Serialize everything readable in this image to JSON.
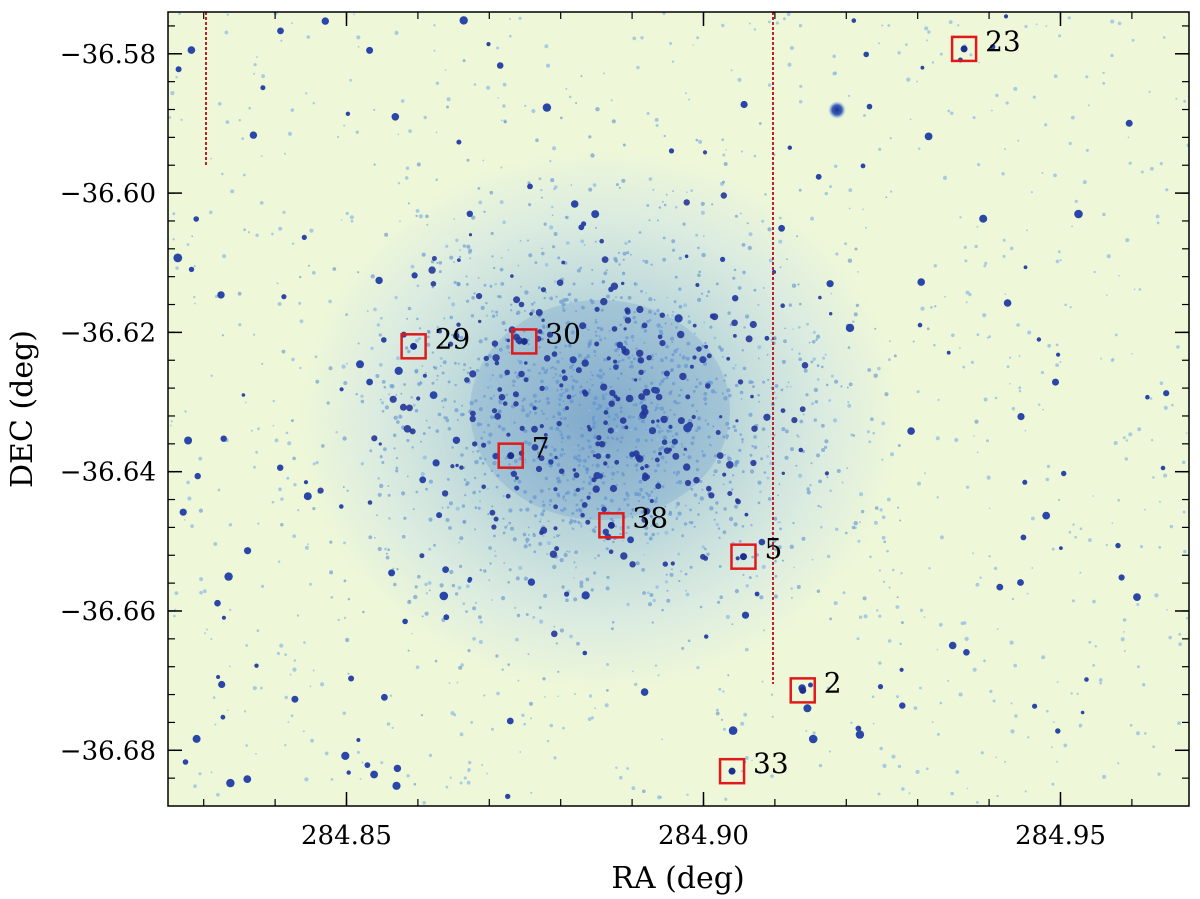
{
  "image": {
    "subject": "star field",
    "colormap": [
      "#eef7d8",
      "#b7d6ee",
      "#3f7bc4",
      "#1d2f8e"
    ],
    "marker_color": "#e01a1a",
    "artifact_color": "#c0202a"
  },
  "axes": {
    "xlabel": "RA (deg)",
    "ylabel": "DEC (deg)",
    "xlim": [
      284.825,
      284.968
    ],
    "ylim": [
      -36.688,
      -36.574
    ],
    "xticks": [
      {
        "value": 284.85,
        "label": "284.85"
      },
      {
        "value": 284.9,
        "label": "284.90"
      },
      {
        "value": 284.95,
        "label": "284.95"
      }
    ],
    "yticks": [
      {
        "value": -36.58,
        "label": "−36.58"
      },
      {
        "value": -36.6,
        "label": "−36.60"
      },
      {
        "value": -36.62,
        "label": "−36.62"
      },
      {
        "value": -36.64,
        "label": "−36.64"
      },
      {
        "value": -36.66,
        "label": "−36.66"
      },
      {
        "value": -36.68,
        "label": "−36.68"
      }
    ]
  },
  "markers": [
    {
      "label": "23",
      "ra": 284.9365,
      "dec": -36.5793
    },
    {
      "label": "29",
      "ra": 284.8594,
      "dec": -36.622
    },
    {
      "label": "30",
      "ra": 284.8749,
      "dec": -36.6213
    },
    {
      "label": "7",
      "ra": 284.873,
      "dec": -36.6377
    },
    {
      "label": "38",
      "ra": 284.8871,
      "dec": -36.6477
    },
    {
      "label": "5",
      "ra": 284.9056,
      "dec": -36.6522
    },
    {
      "label": "2",
      "ra": 284.9139,
      "dec": -36.6714
    },
    {
      "label": "33",
      "ra": 284.904,
      "dec": -36.683
    }
  ]
}
